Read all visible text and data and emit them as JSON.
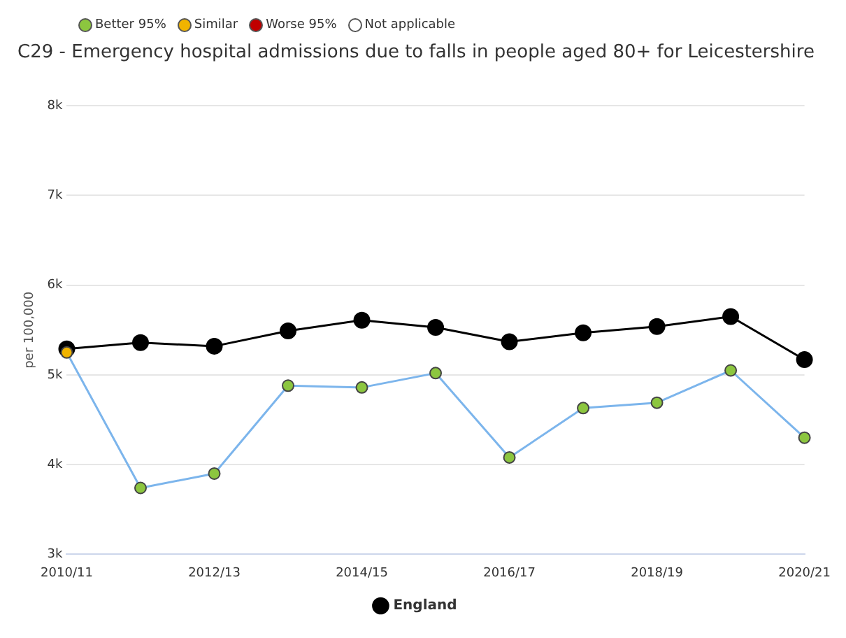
{
  "chart_data": {
    "type": "line",
    "title": "C29 - Emergency hospital admissions due to falls in people aged 80+ for Leicestershire",
    "ylabel": "per 100,000",
    "categories": [
      "2010/11",
      null,
      "2012/13",
      null,
      "2014/15",
      null,
      "2016/17",
      null,
      "2018/19",
      null,
      "2020/21"
    ],
    "series": [
      {
        "color": "#7cb5ec",
        "colors": [
          "#f0b400",
          "#8cc63f",
          "#8cc63f",
          "#8cc63f",
          "#8cc63f",
          "#8cc63f",
          "#8cc63f",
          "#8cc63f",
          "#8cc63f",
          "#8cc63f",
          "#8cc63f"
        ],
        "values": [
          5250,
          3740,
          3900,
          4880,
          4860,
          5020,
          4080,
          4630,
          4690,
          5050,
          4300
        ]
      },
      {
        "name": "England",
        "color": "#000000",
        "values": [
          5290,
          5360,
          5320,
          5490,
          5610,
          5530,
          5370,
          5470,
          5540,
          5650,
          5170
        ]
      },
      {
        "type": "scatter",
        "name": "Better 95%",
        "color": "#8cc63f",
        "values": [
          null,
          null,
          null,
          null,
          null,
          null,
          null,
          null,
          null,
          null,
          null
        ]
      },
      {
        "type": "scatter",
        "name": "Similar",
        "color": "#f0b400",
        "values": [
          null,
          null,
          null,
          null,
          null,
          null,
          null,
          null,
          null,
          null,
          null
        ]
      },
      {
        "type": "scatter",
        "name": "Worse 95%",
        "color": "#c00000",
        "values": [
          null,
          null,
          null,
          null,
          null,
          null,
          null,
          null,
          null,
          null,
          null
        ]
      },
      {
        "type": "scatter",
        "name": "Not applicable",
        "color": "#ffffff",
        "values": [
          null,
          null,
          null,
          null,
          null,
          null,
          null,
          null,
          null,
          null,
          null
        ]
      }
    ],
    "ylim": [
      3000,
      8000
    ],
    "yticks": [
      {
        "value": 3000,
        "label": "3k"
      },
      {
        "value": 4000,
        "label": "4k"
      },
      {
        "value": 5000,
        "label": "5k"
      },
      {
        "value": 6000,
        "label": "6k"
      },
      {
        "value": 7000,
        "label": "7k"
      },
      {
        "value": 8000,
        "label": "8k"
      }
    ],
    "grid": "y",
    "legend": "top left",
    "marker": "circle",
    "line_style": "solid"
  }
}
